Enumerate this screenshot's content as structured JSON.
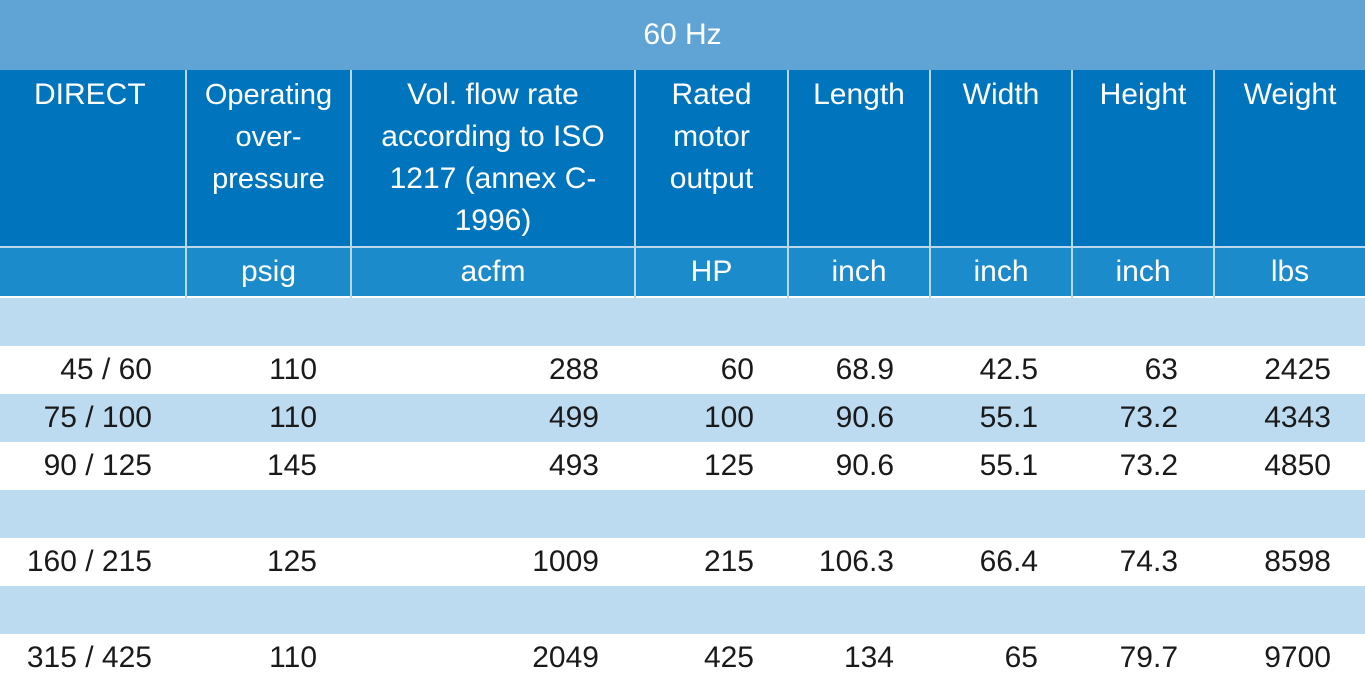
{
  "title": "60 Hz",
  "headers": [
    "DIRECT",
    "Operating over-pressure",
    "Vol. flow rate according to ISO 1217 (annex C-1996)",
    "Rated motor output",
    "Length",
    "Width",
    "Height",
    "Weight"
  ],
  "units": [
    "",
    "psig",
    "acfm",
    "HP",
    "inch",
    "inch",
    "inch",
    "lbs"
  ],
  "rows": [
    [
      "45 / 60",
      "110",
      "288",
      "60",
      "68.9",
      "42.5",
      "63",
      "2425"
    ],
    [
      "75 / 100",
      "110",
      "499",
      "100",
      "90.6",
      "55.1",
      "73.2",
      "4343"
    ],
    [
      "90 / 125",
      "145",
      "493",
      "125",
      "90.6",
      "55.1",
      "73.2",
      "4850"
    ],
    [
      "160 / 215",
      "125",
      "1009",
      "215",
      "106.3",
      "66.4",
      "74.3",
      "8598"
    ],
    [
      "315 / 425",
      "110",
      "2049",
      "425",
      "134",
      "65",
      "79.7",
      "9700"
    ]
  ]
}
